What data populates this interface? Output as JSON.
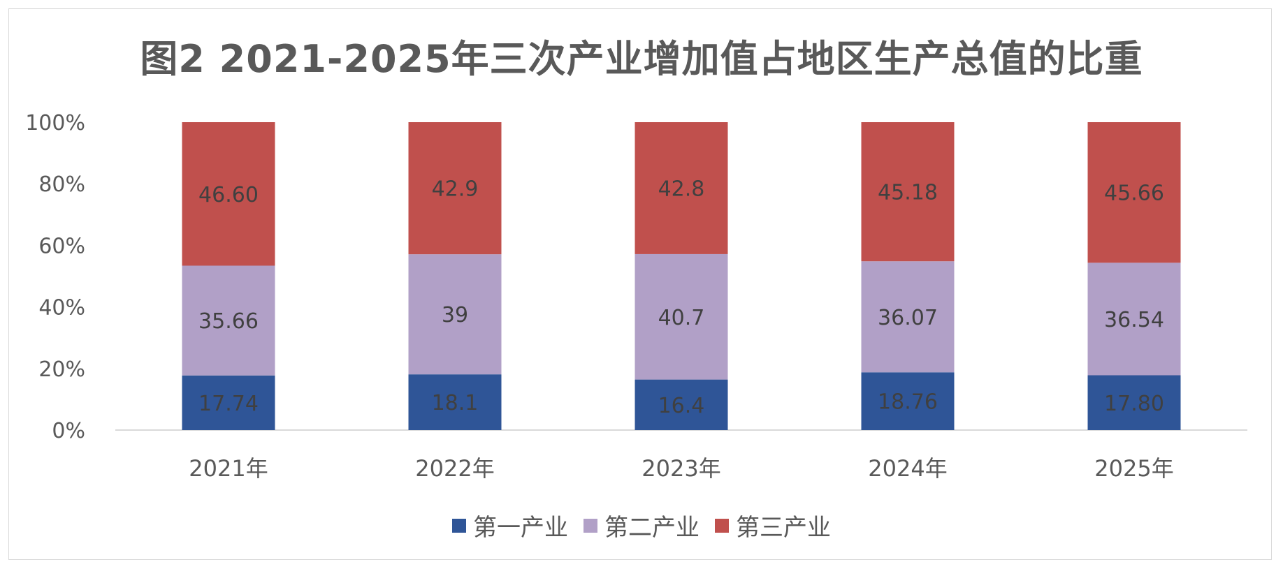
{
  "chart_data": {
    "type": "bar",
    "stacked": true,
    "percent_stacked": true,
    "title": "图2  2021-2025年三次产业增加值占地区生产总值的比重",
    "categories": [
      "2021年",
      "2022年",
      "2023年",
      "2024年",
      "2025年"
    ],
    "y_ticks": [
      "0%",
      "20%",
      "40%",
      "60%",
      "80%",
      "100%"
    ],
    "ylim": [
      0,
      100
    ],
    "legend_position": "bottom",
    "series": [
      {
        "name": "第一产业",
        "color": "#2f5597",
        "values": [
          17.74,
          18.1,
          16.4,
          18.76,
          17.8
        ],
        "labels": [
          "17.74",
          "18.1",
          "16.4",
          "18.76",
          "17.80"
        ]
      },
      {
        "name": "第二产业",
        "color": "#b1a0c7",
        "values": [
          35.66,
          39,
          40.7,
          36.07,
          36.54
        ],
        "labels": [
          "35.66",
          "39",
          "40.7",
          "36.07",
          "36.54"
        ]
      },
      {
        "name": "第三产业",
        "color": "#c0504d",
        "values": [
          46.6,
          42.9,
          42.8,
          45.18,
          45.66
        ],
        "labels": [
          "46.60",
          "42.9",
          "42.8",
          "45.18",
          "45.66"
        ]
      }
    ]
  }
}
